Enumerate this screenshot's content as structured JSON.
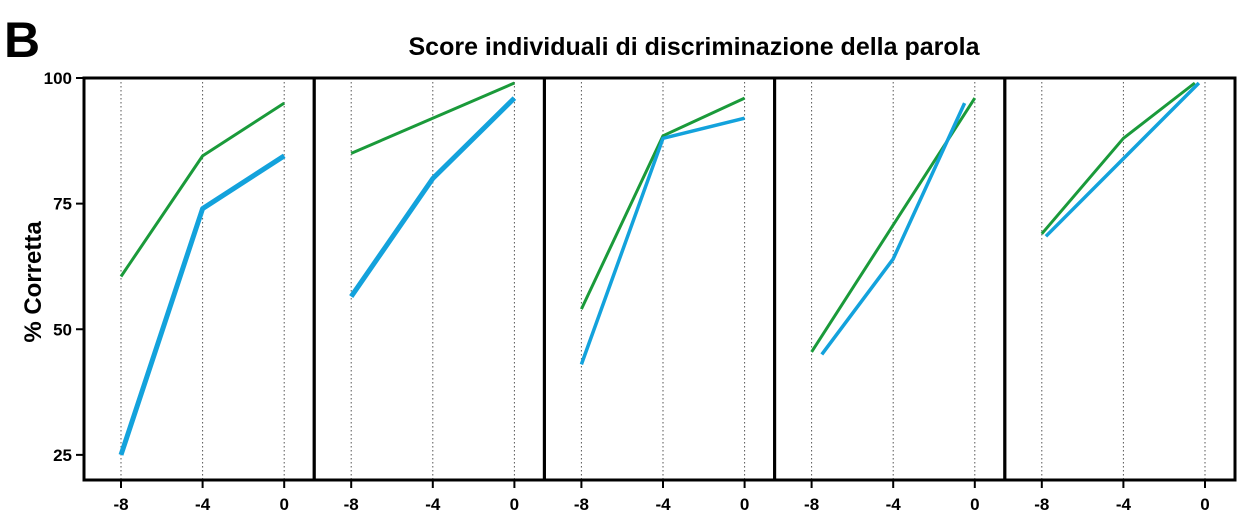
{
  "figure": {
    "panel_letter": "B",
    "title": "Score individuali di discriminazione della parola",
    "ylabel": "% Corretta"
  },
  "colors": {
    "green": "#1a9a3a",
    "blue": "#13a2dc",
    "axis": "#000000",
    "grid": "#555555"
  },
  "chart_data": {
    "type": "line",
    "title": "Score individuali di discriminazione della parola",
    "xlabel": "",
    "ylabel": "% Corretta",
    "ylim": [
      20,
      100
    ],
    "xlim": [
      -9,
      1
    ],
    "x_ticks": [
      -8,
      -4,
      0
    ],
    "x_tick_labels": [
      "-8",
      "-4",
      "0"
    ],
    "y_ticks": [
      25,
      50,
      75,
      100
    ],
    "y_tick_labels": [
      "25",
      "50",
      "75",
      "100"
    ],
    "grid": "vertical dotted lines at x ticks",
    "legend": "none",
    "panels": [
      {
        "series": [
          {
            "color": "green",
            "width": 3,
            "x": [
              -8,
              -4,
              0
            ],
            "y": [
              60.5,
              84.5,
              95
            ]
          },
          {
            "color": "blue",
            "width": 5,
            "x": [
              -8,
              -4,
              0
            ],
            "y": [
              25,
              74,
              84.5
            ]
          }
        ]
      },
      {
        "series": [
          {
            "color": "green",
            "width": 3,
            "x": [
              -8,
              0
            ],
            "y": [
              85,
              99
            ]
          },
          {
            "color": "blue",
            "width": 5,
            "x": [
              -8,
              -4,
              0
            ],
            "y": [
              56.5,
              80,
              96
            ]
          }
        ]
      },
      {
        "series": [
          {
            "color": "green",
            "width": 3,
            "x": [
              -8,
              -4,
              0
            ],
            "y": [
              54,
              88.5,
              96
            ]
          },
          {
            "color": "blue",
            "width": 3.5,
            "x": [
              -8,
              -4,
              0
            ],
            "y": [
              43,
              88,
              92
            ]
          }
        ]
      },
      {
        "series": [
          {
            "color": "green",
            "width": 3,
            "x": [
              -8,
              0
            ],
            "y": [
              45.5,
              96
            ]
          },
          {
            "color": "blue",
            "width": 3.5,
            "x": [
              -7.5,
              -4,
              -0.5
            ],
            "y": [
              45,
              64,
              95
            ]
          }
        ]
      },
      {
        "series": [
          {
            "color": "green",
            "width": 3,
            "x": [
              -8,
              -4,
              -0.5
            ],
            "y": [
              69,
              88,
              99
            ]
          },
          {
            "color": "blue",
            "width": 3.5,
            "x": [
              -7.8,
              -0.3
            ],
            "y": [
              68.5,
              99
            ]
          }
        ]
      }
    ]
  }
}
